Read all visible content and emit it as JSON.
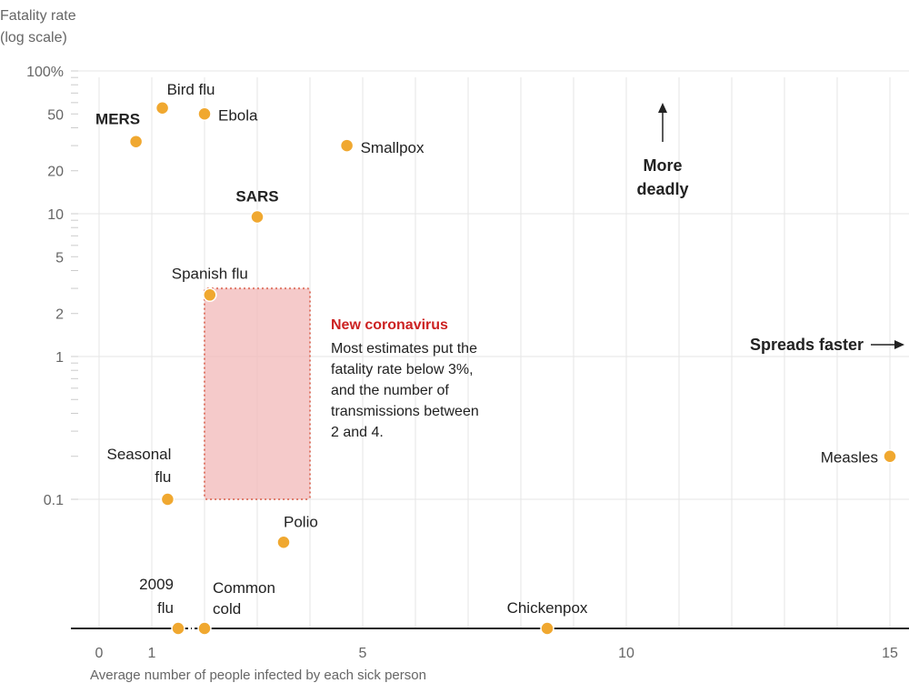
{
  "chart_data": {
    "type": "scatter",
    "ylabel": [
      "Fatality rate",
      "(log scale)"
    ],
    "xlabel": "Average number of people infected by each sick person",
    "y_scale": "log",
    "xlim": [
      0,
      15
    ],
    "x_ticks": [
      {
        "value": 0,
        "label": "0"
      },
      {
        "value": 1,
        "label": "1"
      },
      {
        "value": 5,
        "label": "5"
      },
      {
        "value": 10,
        "label": "10"
      },
      {
        "value": 15,
        "label": "15"
      }
    ],
    "y_ticks": [
      {
        "value": 100,
        "label": "100%"
      },
      {
        "value": 50,
        "label": "50"
      },
      {
        "value": 20,
        "label": "20"
      },
      {
        "value": 10,
        "label": "10"
      },
      {
        "value": 5,
        "label": "5"
      },
      {
        "value": 2,
        "label": "2"
      },
      {
        "value": 1,
        "label": "1"
      },
      {
        "value": 0.1,
        "label": "0.1"
      }
    ],
    "points": [
      {
        "label": "Bird flu",
        "x": 1.2,
        "y": 55,
        "bold": false
      },
      {
        "label": "MERS",
        "x": 0.7,
        "y": 32,
        "bold": true
      },
      {
        "label": "Ebola",
        "x": 2.0,
        "y": 50,
        "bold": false
      },
      {
        "label": "Smallpox",
        "x": 4.7,
        "y": 30,
        "bold": false
      },
      {
        "label": "SARS",
        "x": 3.0,
        "y": 9.5,
        "bold": true
      },
      {
        "label": "Spanish flu",
        "x": 2.1,
        "y": 2.7,
        "bold": false
      },
      {
        "label": "Seasonal flu",
        "x": 1.3,
        "y": 0.1,
        "bold": false
      },
      {
        "label": "Polio",
        "x": 3.5,
        "y": 0.05,
        "bold": false
      },
      {
        "label": "Measles",
        "x": 15.0,
        "y": 0.2,
        "bold": false
      },
      {
        "label": "2009 flu",
        "x": 1.5,
        "y": null,
        "bold": false
      },
      {
        "label": "Common cold",
        "x": 2.0,
        "y": null,
        "bold": false
      },
      {
        "label": "Chickenpox",
        "x": 8.5,
        "y": null,
        "bold": false
      }
    ],
    "highlight_region": {
      "x_range": [
        2,
        4
      ],
      "y_range": [
        0.1,
        3
      ],
      "title": "New coronavirus",
      "text": [
        "Most estimates put the",
        "fatality rate below 3%,",
        "and the number of",
        "transmissions between",
        "2 and 4."
      ]
    },
    "annotations": {
      "more_deadly": [
        "More",
        "deadly"
      ],
      "spreads_faster": "Spreads faster"
    },
    "colors": {
      "point": "#f0a830",
      "point_stroke": "#ffffff",
      "highlight_fill": "#f2b8b8",
      "highlight_stroke": "#e07a6a",
      "coronavirus_title": "#cc2222",
      "grid": "#e6e6e6",
      "axis": "#222222"
    }
  }
}
